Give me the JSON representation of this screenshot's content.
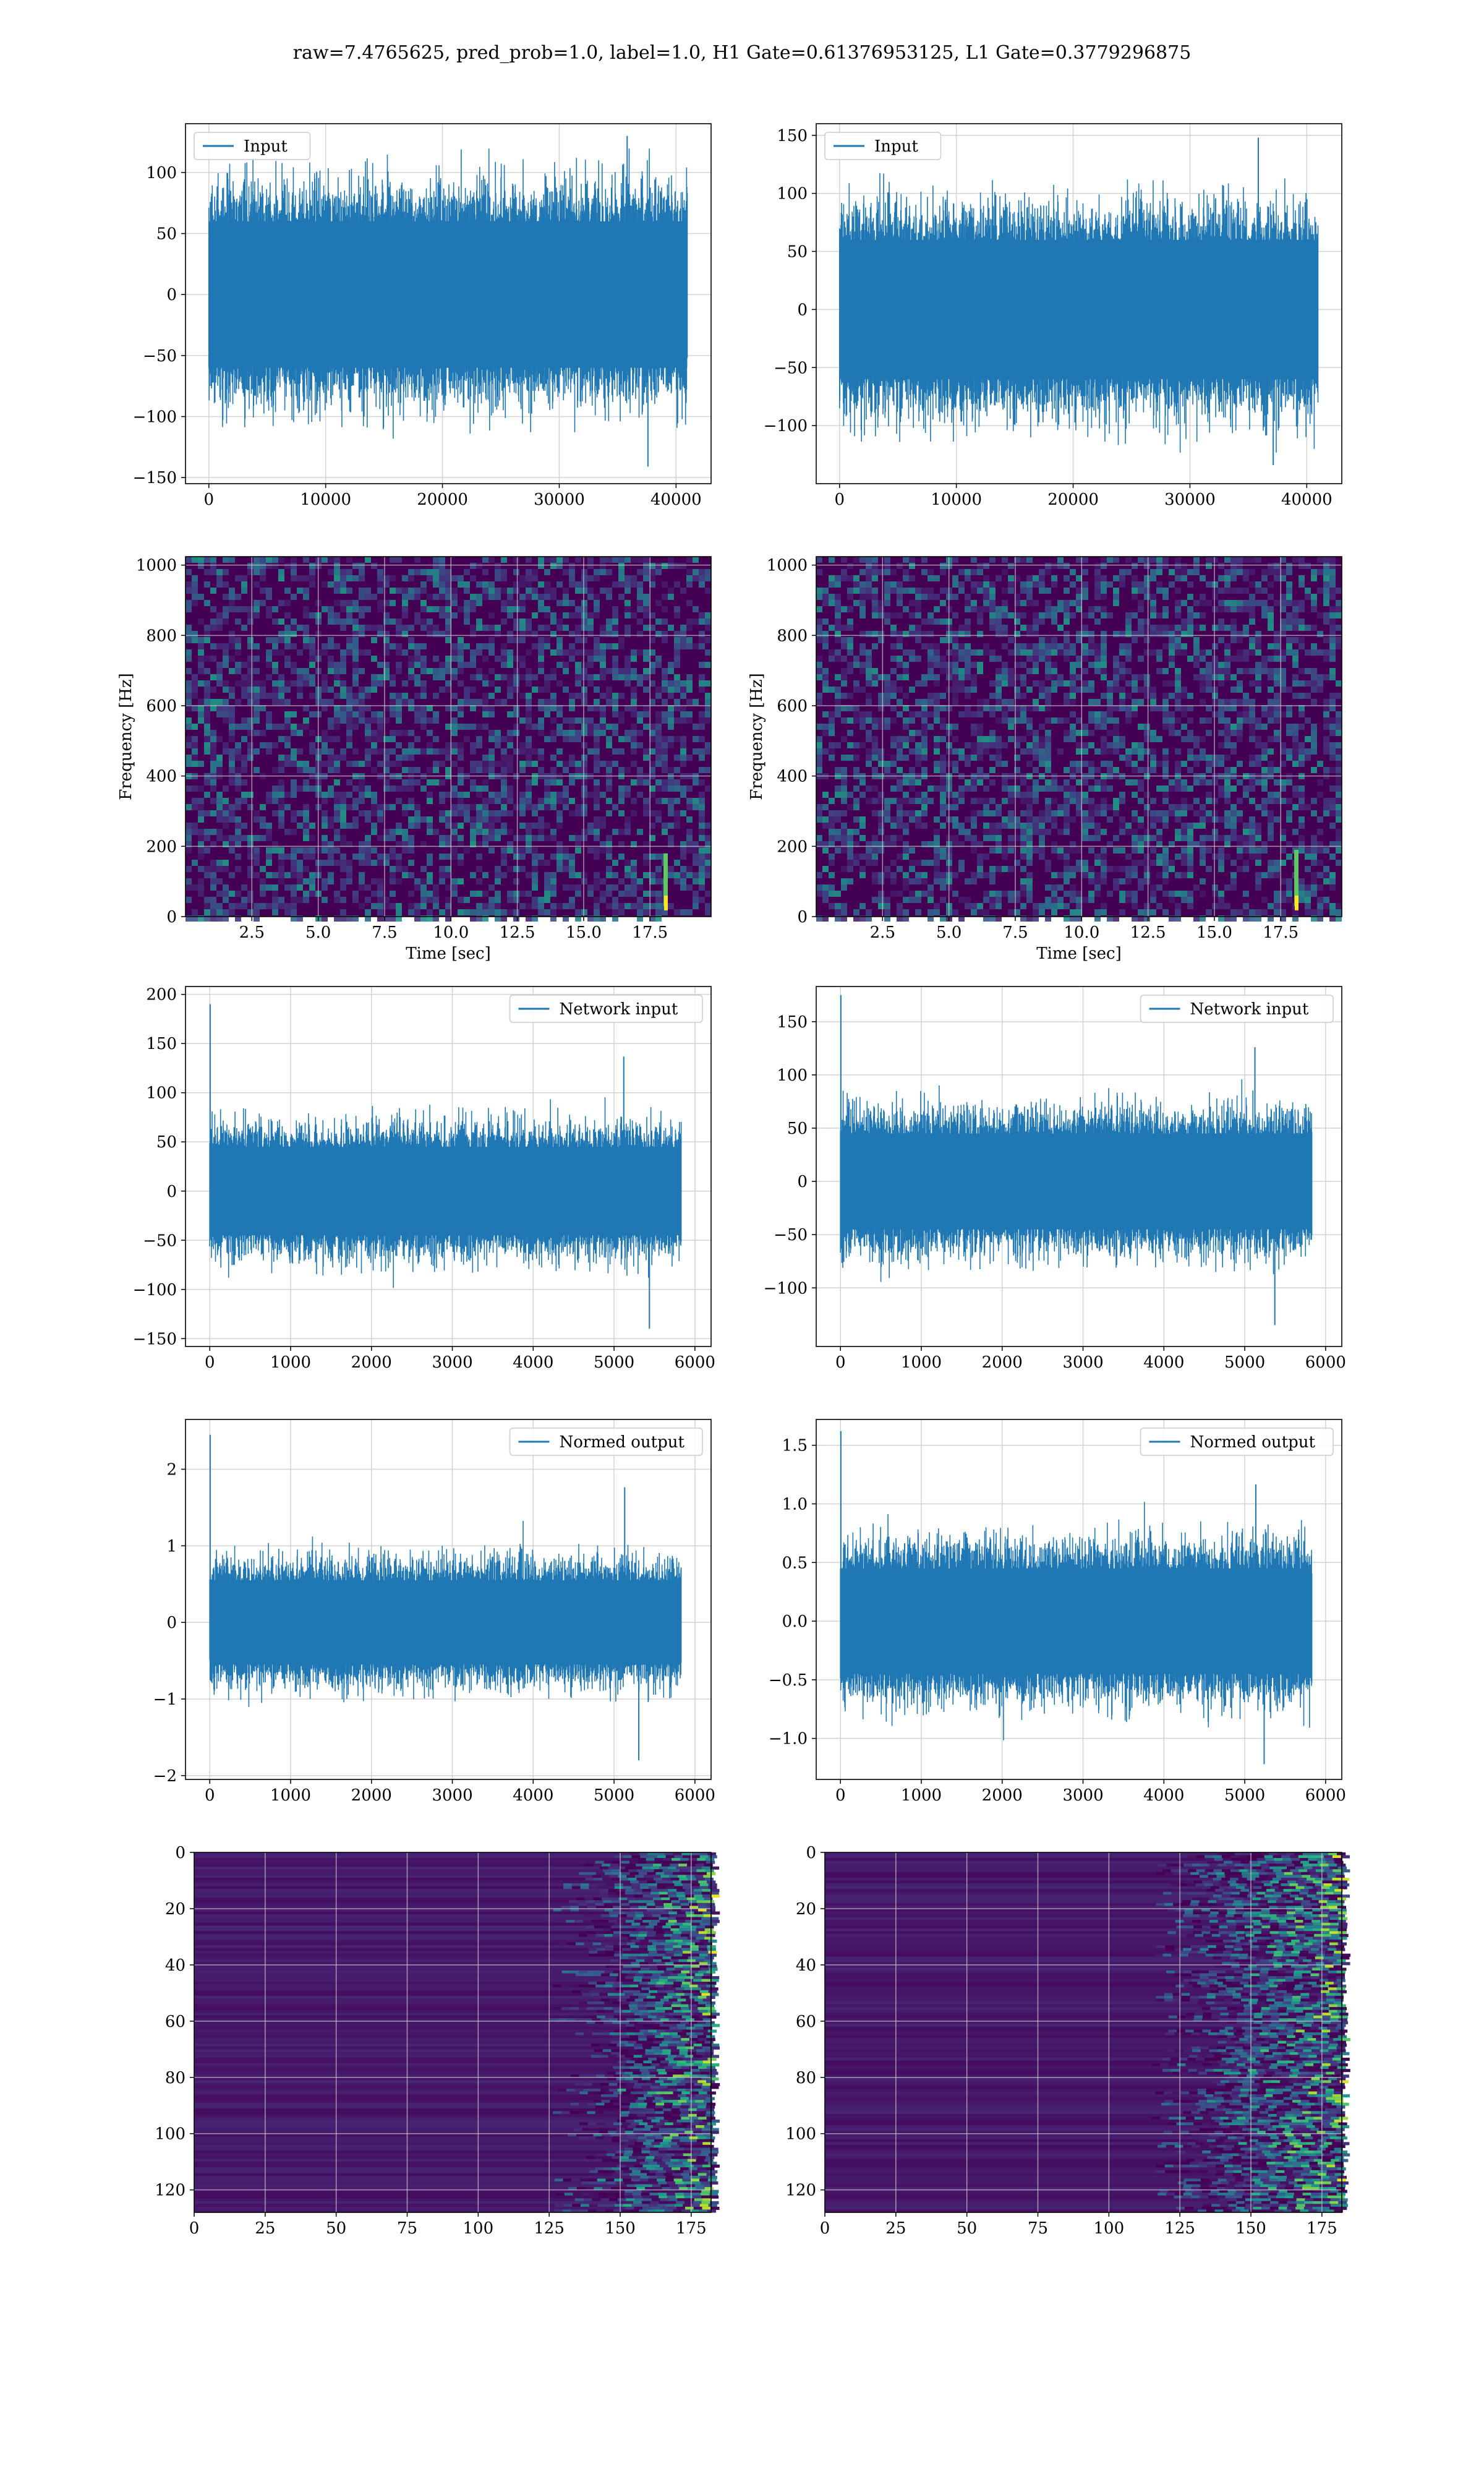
{
  "suptitle": "raw=7.4765625, pred_prob=1.0, label=1.0, H1 Gate=0.61376953125, L1 Gate=0.3779296875",
  "colors": {
    "series": "#1f77b4",
    "grid": "#d3d3d3",
    "viridis_dark": "#440154",
    "viridis_bright": "#fde725"
  },
  "chart_data": [
    {
      "type": "line",
      "row": 1,
      "col": 1,
      "legend": "Input",
      "legend_loc": "upper left",
      "xlim": [
        -2000,
        43000
      ],
      "ylim": [
        -155,
        140
      ],
      "xticks": [
        0,
        10000,
        20000,
        30000,
        40000
      ],
      "xtick_labels": [
        "0",
        "10000",
        "20000",
        "30000",
        "40000"
      ],
      "yticks": [
        -150,
        -100,
        -50,
        0,
        50,
        100
      ],
      "ytick_labels": [
        "−150",
        "−100",
        "−50",
        "0",
        "50",
        "100"
      ],
      "series": [
        {
          "x_range": [
            0,
            40960
          ],
          "band": [
            -60,
            60
          ],
          "max": 130,
          "min": -141
        }
      ]
    },
    {
      "type": "line",
      "row": 1,
      "col": 2,
      "legend": "Input",
      "legend_loc": "upper left",
      "xlim": [
        -2000,
        43000
      ],
      "ylim": [
        -150,
        160
      ],
      "xticks": [
        0,
        10000,
        20000,
        30000,
        40000
      ],
      "xtick_labels": [
        "0",
        "10000",
        "20000",
        "30000",
        "40000"
      ],
      "yticks": [
        -100,
        -50,
        0,
        50,
        100,
        150
      ],
      "ytick_labels": [
        "−100",
        "−50",
        "0",
        "50",
        "100",
        "150"
      ],
      "series": [
        {
          "x_range": [
            0,
            40960
          ],
          "band": [
            -60,
            60
          ],
          "max": 148,
          "min": -134
        }
      ]
    },
    {
      "type": "heatmap",
      "row": 2,
      "col": 1,
      "colormap": "viridis",
      "xlabel": "Time [sec]",
      "ylabel": "Frequency [Hz]",
      "xlim": [
        0.0,
        19.8
      ],
      "ylim": [
        0,
        1024
      ],
      "xticks": [
        2.5,
        5.0,
        7.5,
        10.0,
        12.5,
        15.0,
        17.5
      ],
      "xtick_labels": [
        "2.5",
        "5.0",
        "7.5",
        "10.0",
        "12.5",
        "15.0",
        "17.5"
      ],
      "yticks": [
        0,
        200,
        400,
        600,
        800,
        1000
      ],
      "ytick_labels": [
        "0",
        "200",
        "400",
        "600",
        "800",
        "1000"
      ],
      "features": [
        {
          "kind": "chirp",
          "time": 18.1,
          "freq_range": [
            30,
            180
          ]
        }
      ]
    },
    {
      "type": "heatmap",
      "row": 2,
      "col": 2,
      "colormap": "viridis",
      "xlabel": "Time [sec]",
      "ylabel": "Frequency [Hz]",
      "xlim": [
        0.0,
        19.8
      ],
      "ylim": [
        0,
        1024
      ],
      "xticks": [
        2.5,
        5.0,
        7.5,
        10.0,
        12.5,
        15.0,
        17.5
      ],
      "xtick_labels": [
        "2.5",
        "5.0",
        "7.5",
        "10.0",
        "12.5",
        "15.0",
        "17.5"
      ],
      "yticks": [
        0,
        200,
        400,
        600,
        800,
        1000
      ],
      "ytick_labels": [
        "0",
        "200",
        "400",
        "600",
        "800",
        "1000"
      ],
      "features": [
        {
          "kind": "chirp",
          "time": 18.1,
          "freq_range": [
            30,
            190
          ]
        }
      ]
    },
    {
      "type": "line",
      "row": 3,
      "col": 1,
      "legend": "Network input",
      "legend_loc": "upper right",
      "xlim": [
        -300,
        6200
      ],
      "ylim": [
        -158,
        208
      ],
      "xticks": [
        0,
        1000,
        2000,
        3000,
        4000,
        5000,
        6000
      ],
      "xtick_labels": [
        "0",
        "1000",
        "2000",
        "3000",
        "4000",
        "5000",
        "6000"
      ],
      "yticks": [
        -150,
        -100,
        -50,
        0,
        50,
        100,
        150,
        200
      ],
      "ytick_labels": [
        "−150",
        "−100",
        "−50",
        "0",
        "50",
        "100",
        "150",
        "200"
      ],
      "series": [
        {
          "x_range": [
            0,
            5830
          ],
          "band": [
            -45,
            45
          ],
          "max": 190,
          "min": -140
        }
      ]
    },
    {
      "type": "line",
      "row": 3,
      "col": 2,
      "legend": "Network input",
      "legend_loc": "upper right",
      "xlim": [
        -300,
        6200
      ],
      "ylim": [
        -155,
        183
      ],
      "xticks": [
        0,
        1000,
        2000,
        3000,
        4000,
        5000,
        6000
      ],
      "xtick_labels": [
        "0",
        "1000",
        "2000",
        "3000",
        "4000",
        "5000",
        "6000"
      ],
      "yticks": [
        -100,
        -50,
        0,
        50,
        100,
        150
      ],
      "ytick_labels": [
        "−100",
        "−50",
        "0",
        "50",
        "100",
        "150"
      ],
      "series": [
        {
          "x_range": [
            0,
            5830
          ],
          "band": [
            -45,
            45
          ],
          "max": 175,
          "min": -135
        }
      ]
    },
    {
      "type": "line",
      "row": 4,
      "col": 1,
      "legend": "Normed output",
      "legend_loc": "upper right",
      "xlim": [
        -300,
        6200
      ],
      "ylim": [
        -2.05,
        2.65
      ],
      "xticks": [
        0,
        1000,
        2000,
        3000,
        4000,
        5000,
        6000
      ],
      "xtick_labels": [
        "0",
        "1000",
        "2000",
        "3000",
        "4000",
        "5000",
        "6000"
      ],
      "yticks": [
        -2,
        -1,
        0,
        1,
        2
      ],
      "ytick_labels": [
        "−2",
        "−1",
        "0",
        "1",
        "2"
      ],
      "series": [
        {
          "x_range": [
            0,
            5830
          ],
          "band": [
            -0.55,
            0.55
          ],
          "max": 2.45,
          "min": -1.8
        }
      ]
    },
    {
      "type": "line",
      "row": 4,
      "col": 2,
      "legend": "Normed output",
      "legend_loc": "upper right",
      "xlim": [
        -300,
        6200
      ],
      "ylim": [
        -1.35,
        1.72
      ],
      "xticks": [
        0,
        1000,
        2000,
        3000,
        4000,
        5000,
        6000
      ],
      "xtick_labels": [
        "0",
        "1000",
        "2000",
        "3000",
        "4000",
        "5000",
        "6000"
      ],
      "yticks": [
        -1.0,
        -0.5,
        0.0,
        0.5,
        1.0,
        1.5
      ],
      "ytick_labels": [
        "−1.0",
        "−0.5",
        "0.0",
        "0.5",
        "1.0",
        "1.5"
      ],
      "series": [
        {
          "x_range": [
            0,
            5830
          ],
          "band": [
            -0.45,
            0.45
          ],
          "max": 1.62,
          "min": -1.22
        }
      ]
    },
    {
      "type": "heatmap",
      "row": 5,
      "col": 1,
      "colormap": "viridis",
      "y_inverted": true,
      "xlim": [
        0,
        182
      ],
      "ylim": [
        128,
        0
      ],
      "xticks": [
        0,
        25,
        50,
        75,
        100,
        125,
        150,
        175
      ],
      "xtick_labels": [
        "0",
        "25",
        "50",
        "75",
        "100",
        "125",
        "150",
        "175"
      ],
      "yticks": [
        0,
        20,
        40,
        60,
        80,
        100,
        120
      ],
      "ytick_labels": [
        "0",
        "20",
        "40",
        "60",
        "80",
        "100",
        "120"
      ],
      "features": [
        {
          "kind": "bright_band",
          "x_range": [
            155,
            182
          ]
        }
      ]
    },
    {
      "type": "heatmap",
      "row": 5,
      "col": 2,
      "colormap": "viridis",
      "y_inverted": true,
      "xlim": [
        0,
        182
      ],
      "ylim": [
        128,
        0
      ],
      "xticks": [
        0,
        25,
        50,
        75,
        100,
        125,
        150,
        175
      ],
      "xtick_labels": [
        "0",
        "25",
        "50",
        "75",
        "100",
        "125",
        "150",
        "175"
      ],
      "yticks": [
        0,
        20,
        40,
        60,
        80,
        100,
        120
      ],
      "ytick_labels": [
        "0",
        "20",
        "40",
        "60",
        "80",
        "100",
        "120"
      ],
      "features": [
        {
          "kind": "bright_band",
          "x_range": [
            145,
            182
          ]
        }
      ]
    }
  ]
}
